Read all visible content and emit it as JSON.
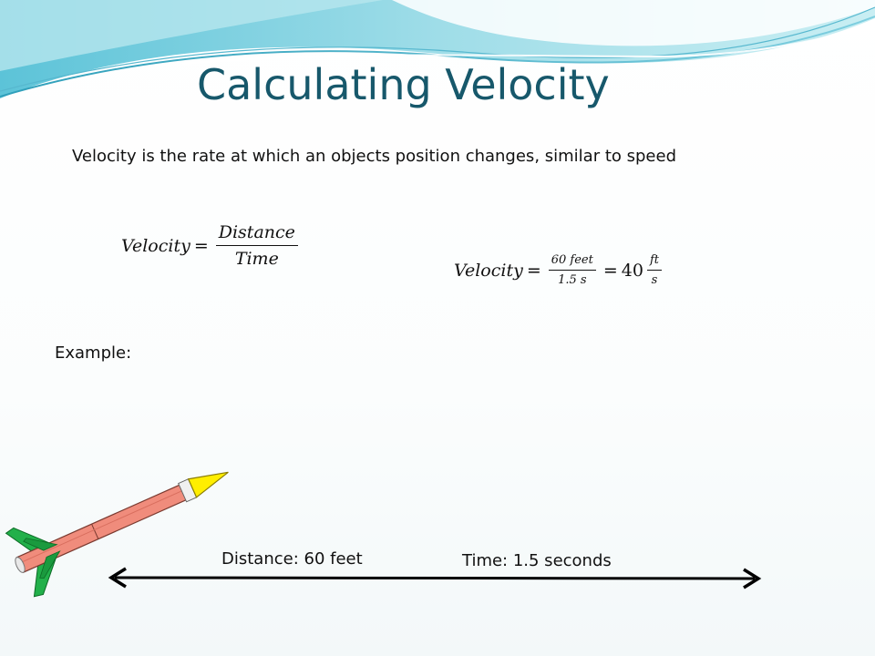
{
  "slide": {
    "title": "Calculating Velocity",
    "subtitle": "Velocity is the rate at which an objects position changes, similar to speed",
    "formula_general": {
      "lhs": "Velocity",
      "equals": "=",
      "numerator": "Distance",
      "denominator": "Time"
    },
    "formula_example": {
      "lhs": "Velocity",
      "equals": "=",
      "numerator": "60 feet",
      "denominator": "1.5 s",
      "equals2": "=",
      "result": "40",
      "unit_numerator": "ft",
      "unit_denominator": "s"
    },
    "example_label": "Example:",
    "distance_label": "Distance: 60 feet",
    "time_label": "Time: 1.5 seconds"
  },
  "colors": {
    "title": "#17586b",
    "wave_light": "#a8e0ea",
    "wave_dark": "#3aa6c0",
    "rocket_body": "#f08c7c",
    "rocket_nose": "#ffee00",
    "rocket_fins": "#22b04a"
  }
}
